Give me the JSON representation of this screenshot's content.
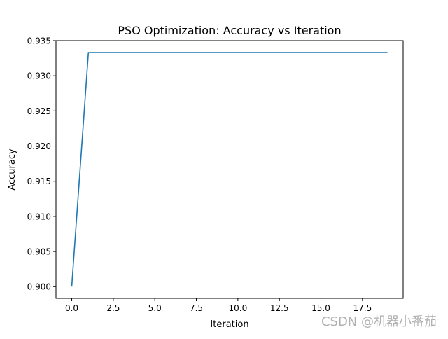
{
  "chart_data": {
    "type": "line",
    "title": "PSO Optimization: Accuracy vs Iteration",
    "xlabel": "Iteration",
    "ylabel": "Accuracy",
    "x": [
      0,
      1,
      2,
      3,
      4,
      5,
      6,
      7,
      8,
      9,
      10,
      11,
      12,
      13,
      14,
      15,
      16,
      17,
      18,
      19
    ],
    "series": [
      {
        "name": "Accuracy",
        "color": "#1f77b4",
        "values": [
          0.9,
          0.9333,
          0.9333,
          0.9333,
          0.9333,
          0.9333,
          0.9333,
          0.9333,
          0.9333,
          0.9333,
          0.9333,
          0.9333,
          0.9333,
          0.9333,
          0.9333,
          0.9333,
          0.9333,
          0.9333,
          0.9333,
          0.9333
        ]
      }
    ],
    "xlim": [
      -0.95,
      19.95
    ],
    "ylim": [
      0.89833,
      0.935
    ],
    "xticks": [
      "0.0",
      "2.5",
      "5.0",
      "7.5",
      "10.0",
      "12.5",
      "15.0",
      "17.5"
    ],
    "xtick_values": [
      0,
      2.5,
      5,
      7.5,
      10,
      12.5,
      15,
      17.5
    ],
    "yticks": [
      "0.900",
      "0.905",
      "0.910",
      "0.915",
      "0.920",
      "0.925",
      "0.930",
      "0.935"
    ],
    "ytick_values": [
      0.9,
      0.905,
      0.91,
      0.915,
      0.92,
      0.925,
      0.93,
      0.935
    ],
    "grid": false,
    "legend": null
  },
  "watermark": "CSDN @机器小番茄"
}
